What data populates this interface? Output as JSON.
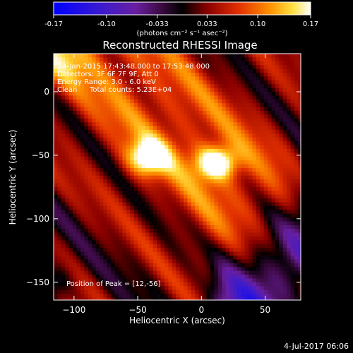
{
  "chart_data": {
    "type": "heatmap",
    "title": "Reconstructed RHESSI Image",
    "colorbar": {
      "ticks": [
        "-0.17",
        "-0.10",
        "-0.033",
        "0.033",
        "0.10",
        "0.17"
      ],
      "tick_values": [
        -0.17,
        -0.1,
        -0.033,
        0.033,
        0.1,
        0.17
      ],
      "range": [
        -0.17,
        0.17
      ],
      "units": "(photons cm⁻² s⁻¹ asec⁻²)",
      "colormap": "blue-purple-red-yellow-white"
    },
    "annotations": {
      "time": "4-Jan-2015 17:43:48.000 to 17:53:48.000",
      "detectors": "Detectors: 3F 6F 7F 9F, Att 0",
      "energy": "Energy Range: 3.0 - 6.0 keV",
      "clean": "Clean",
      "counts": "Total counts: 5.23E+04",
      "peak": "Position of Peak = [12,-56]"
    },
    "xlabel": "Heliocentric X (arcsec)",
    "ylabel": "Heliocentric Y (arcsec)",
    "xlim": [
      -116,
      78
    ],
    "ylim": [
      -164,
      30
    ],
    "xticks": [
      -100,
      -50,
      0,
      50
    ],
    "yticks": [
      0,
      -50,
      -100,
      -150
    ],
    "peak": {
      "x": 12,
      "y": -56
    },
    "footer": "4-Jul-2017 06:06",
    "colors": {
      "stops": [
        [
          0.0,
          "#0000ff"
        ],
        [
          0.18,
          "#3a1ad0"
        ],
        [
          0.32,
          "#6a1fa0"
        ],
        [
          0.42,
          "#3a0a40"
        ],
        [
          0.5,
          "#000000"
        ],
        [
          0.6,
          "#8c0000"
        ],
        [
          0.72,
          "#e23000"
        ],
        [
          0.84,
          "#ff9000"
        ],
        [
          0.93,
          "#ffe040"
        ],
        [
          1.0,
          "#ffffff"
        ]
      ]
    }
  }
}
